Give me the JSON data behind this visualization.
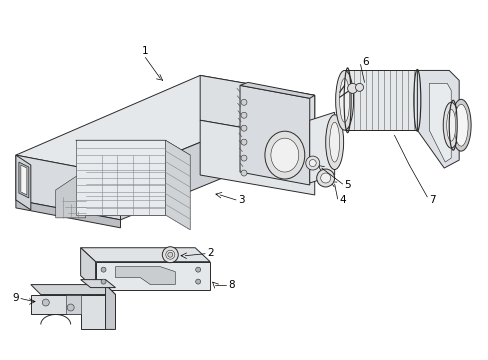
{
  "background_color": "#ffffff",
  "line_color": "#2a2a2a",
  "fill_light": "#f0f0f0",
  "fill_mid": "#e0e0e0",
  "fill_dark": "#cccccc",
  "fill_box": "#e8e8e8",
  "label_fontsize": 7.5,
  "label_color": "#000000",
  "lw_main": 0.7,
  "lw_thin": 0.4,
  "lw_label": 0.5
}
